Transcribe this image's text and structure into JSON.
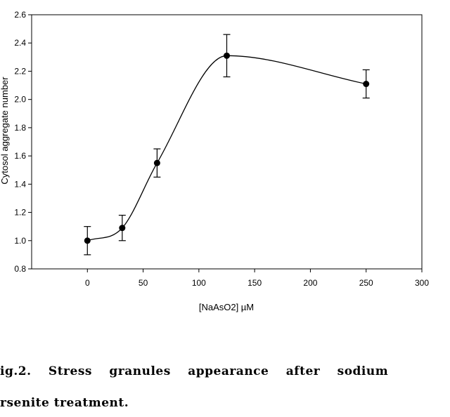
{
  "chart_data": {
    "type": "line",
    "title": "",
    "xlabel": "[NaAsO2] µM",
    "ylabel": "Cytosol aggregate number",
    "xlim": [
      -50,
      300
    ],
    "ylim": [
      0.8,
      2.6
    ],
    "x_ticks": [
      0,
      50,
      100,
      150,
      200,
      250,
      300
    ],
    "x_tick_labels": [
      "0",
      "50",
      "100",
      "150",
      "200",
      "250",
      "300"
    ],
    "y_ticks": [
      0.8,
      1.0,
      1.2,
      1.4,
      1.6,
      1.8,
      2.0,
      2.2,
      2.4,
      2.6
    ],
    "y_tick_labels": [
      "0.8",
      "1.0",
      "1.2",
      "1.4",
      "1.6",
      "1.8",
      "2.0",
      "2.2",
      "2.4",
      "2.6"
    ],
    "grid": false,
    "line_style": "smooth",
    "series": [
      {
        "x": [
          0,
          31.25,
          62.5,
          125,
          250
        ],
        "y": [
          1.0,
          1.09,
          1.55,
          2.31,
          2.11
        ],
        "error": [
          0.1,
          0.09,
          0.1,
          0.15,
          0.1
        ],
        "marker": "circle",
        "color": "#000000"
      }
    ]
  },
  "caption": {
    "line1": "ig.2. Stress granules appearance after sodium",
    "line2": "rsenite treatment."
  }
}
